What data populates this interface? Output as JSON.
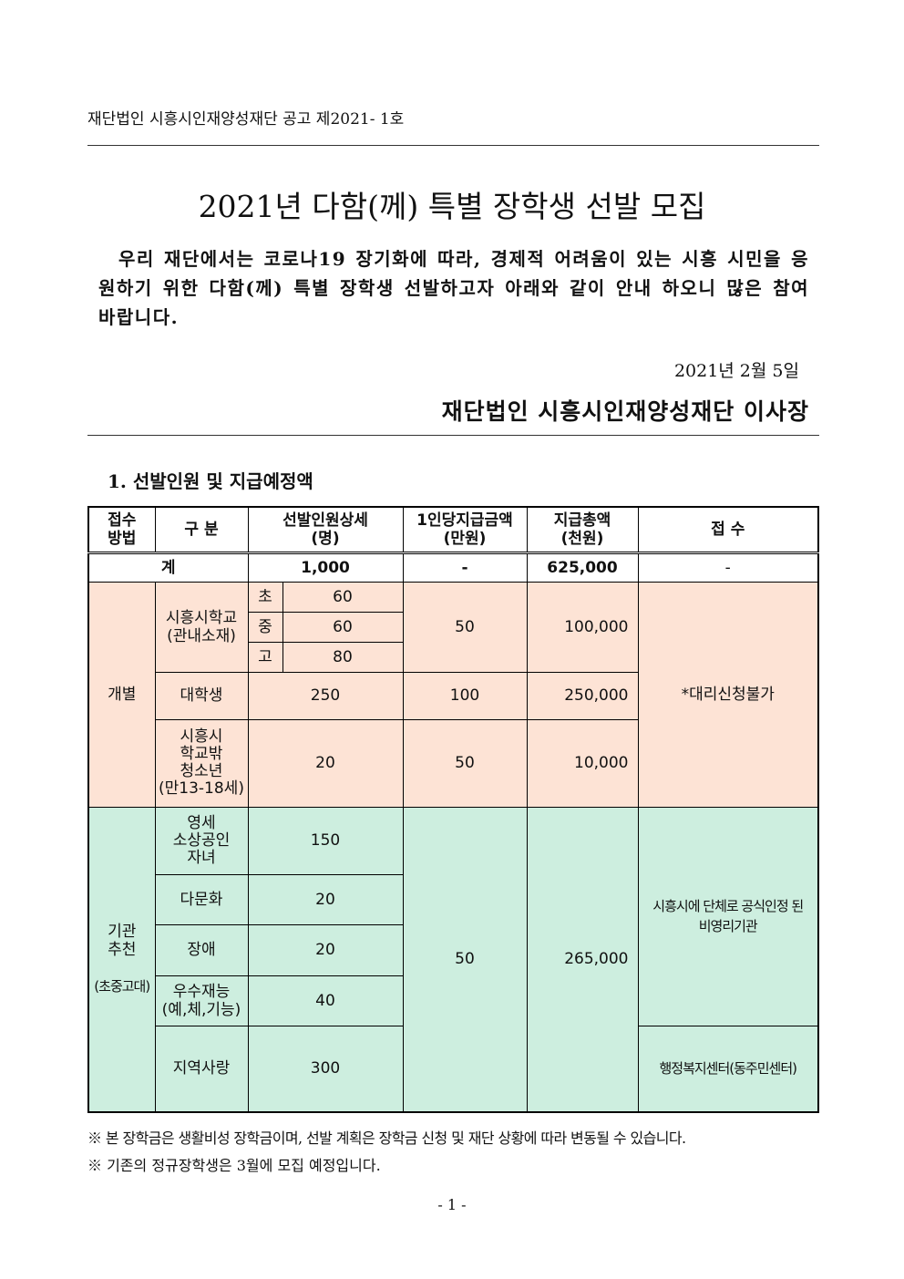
{
  "header": {
    "notice": "재단법인 시흥시인재양성재단 공고 제2021- 1호"
  },
  "title": "2021년 다함(께) 특별 장학생 선발 모집",
  "intro": "우리 재단에서는 코로나19 장기화에 따라, 경제적 어려움이 있는 시흥 시민을 응원하기 위한 다함(께) 특별 장학생 선발하고자 아래와 같이 안내 하오니 많은 참여 바랍니다.",
  "date": "2021년 2월 5일",
  "issuer": "재단법인 시흥시인재양성재단 이사장",
  "section1": "1. 선발인원 및 지급예정액",
  "table": {
    "headers": {
      "method": "접수\n방법",
      "category": "구 분",
      "count": "선발인원상세\n(명)",
      "per_person": "1인당지급금액\n(만원)",
      "total": "지급총액\n(천원)",
      "reception": "접 수"
    },
    "total_row": {
      "label": "계",
      "count": "1,000",
      "per_person": "-",
      "total": "625,000",
      "reception": "-"
    },
    "individual": {
      "method": "개별",
      "school": {
        "label": "시흥시학교\n(관내소재)",
        "levels": [
          {
            "level": "초",
            "count": "60"
          },
          {
            "level": "중",
            "count": "60"
          },
          {
            "level": "고",
            "count": "80"
          }
        ],
        "per_person": "50",
        "total": "100,000"
      },
      "university": {
        "label": "대학생",
        "count": "250",
        "per_person": "100",
        "total": "250,000"
      },
      "out_of_school": {
        "label": "시흥시\n학교밖\n청소년\n(만13-18세)",
        "count": "20",
        "per_person": "50",
        "total": "10,000"
      },
      "reception": "*대리신청불가"
    },
    "institution": {
      "method": "기관\n추천",
      "method_note": "(초중고대)",
      "rows": [
        {
          "label": "영세\n소상공인\n자녀",
          "count": "150"
        },
        {
          "label": "다문화",
          "count": "20"
        },
        {
          "label": "장애",
          "count": "20"
        },
        {
          "label": "우수재능\n(예,체,기능)",
          "count": "40"
        },
        {
          "label": "지역사랑",
          "count": "300"
        }
      ],
      "per_person": "50",
      "total": "265,000",
      "reception_org": "시흥시에 단체로 공식인정 된\n비영리기관",
      "reception_center": "행정복지센터(동주민센터)"
    }
  },
  "footnotes": [
    "※ 본 장학금은 생활비성 장학금이며, 선발 계획은 장학금 신청 및 재단 상황에 따라 변동될 수 있습니다.",
    "※ 기존의 정규장학생은 3월에 모집 예정입니다."
  ],
  "page_number": "- 1 -",
  "colors": {
    "individual_bg": "#fde3d5",
    "institution_bg": "#cdeedf"
  }
}
